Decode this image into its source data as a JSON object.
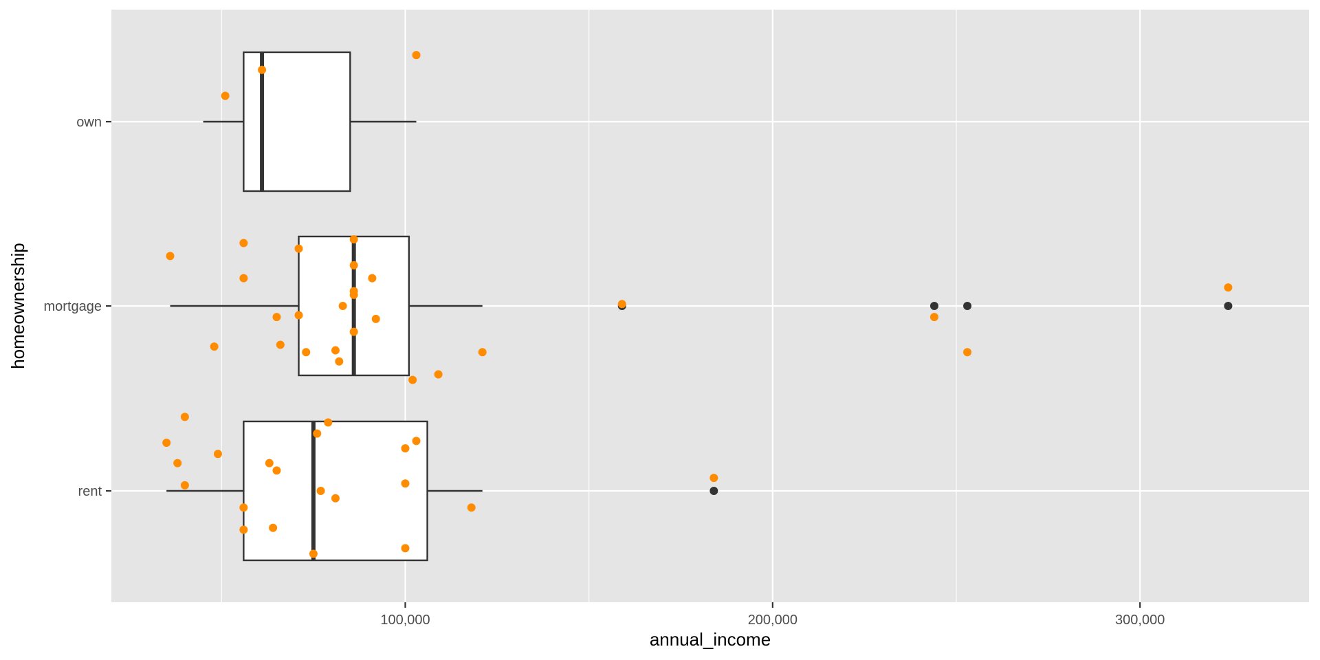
{
  "chart_data": {
    "type": "boxplot",
    "orientation": "horizontal",
    "xlabel": "annual_income",
    "ylabel": "homeownership",
    "xlim": [
      20000,
      346000
    ],
    "x_ticks": [
      100000,
      200000,
      300000
    ],
    "x_tick_labels": [
      "100,000",
      "200,000",
      "300,000"
    ],
    "grid": true,
    "colors": {
      "panel_background": "#e5e5e5",
      "grid": "#ffffff",
      "box_fill": "#ffffff",
      "box_line": "#333333",
      "outlier": "#333333",
      "jitter_point": "#ff8c00"
    },
    "categories": [
      "own",
      "mortgage",
      "rent"
    ],
    "boxes": [
      {
        "category": "own",
        "whisker_low": 45000,
        "q1": 56000,
        "median": 61000,
        "q3": 85000,
        "whisker_high": 103000,
        "outliers": []
      },
      {
        "category": "mortgage",
        "whisker_low": 36000,
        "q1": 71000,
        "median": 86000,
        "q3": 101000,
        "whisker_high": 121000,
        "outliers": [
          159000,
          244000,
          253000,
          324000
        ]
      },
      {
        "category": "rent",
        "whisker_low": 35000,
        "q1": 56000,
        "median": 75000,
        "q3": 106000,
        "whisker_high": 121000,
        "outliers": [
          184000
        ]
      }
    ],
    "jitter_points": [
      {
        "category": "own",
        "x": 103000,
        "offset": 0.36
      },
      {
        "category": "own",
        "x": 61000,
        "offset": 0.28
      },
      {
        "category": "own",
        "x": 51000,
        "offset": 0.14
      },
      {
        "category": "mortgage",
        "x": 36000,
        "offset": 0.27
      },
      {
        "category": "mortgage",
        "x": 56000,
        "offset": 0.34
      },
      {
        "category": "mortgage",
        "x": 71000,
        "offset": 0.31
      },
      {
        "category": "mortgage",
        "x": 86000,
        "offset": 0.36
      },
      {
        "category": "mortgage",
        "x": 56000,
        "offset": 0.15
      },
      {
        "category": "mortgage",
        "x": 86000,
        "offset": 0.22
      },
      {
        "category": "mortgage",
        "x": 91000,
        "offset": 0.15
      },
      {
        "category": "mortgage",
        "x": 86000,
        "offset": 0.08
      },
      {
        "category": "mortgage",
        "x": 86000,
        "offset": 0.06
      },
      {
        "category": "mortgage",
        "x": 83000,
        "offset": 0.0
      },
      {
        "category": "mortgage",
        "x": 65000,
        "offset": -0.06
      },
      {
        "category": "mortgage",
        "x": 71000,
        "offset": -0.05
      },
      {
        "category": "mortgage",
        "x": 92000,
        "offset": -0.07
      },
      {
        "category": "mortgage",
        "x": 86000,
        "offset": -0.14
      },
      {
        "category": "mortgage",
        "x": 48000,
        "offset": -0.22
      },
      {
        "category": "mortgage",
        "x": 66000,
        "offset": -0.21
      },
      {
        "category": "mortgage",
        "x": 73000,
        "offset": -0.25
      },
      {
        "category": "mortgage",
        "x": 81000,
        "offset": -0.24
      },
      {
        "category": "mortgage",
        "x": 82000,
        "offset": -0.3
      },
      {
        "category": "mortgage",
        "x": 121000,
        "offset": -0.25
      },
      {
        "category": "mortgage",
        "x": 109000,
        "offset": -0.37
      },
      {
        "category": "mortgage",
        "x": 102000,
        "offset": -0.4
      },
      {
        "category": "mortgage",
        "x": 159000,
        "offset": 0.01
      },
      {
        "category": "mortgage",
        "x": 244000,
        "offset": -0.06
      },
      {
        "category": "mortgage",
        "x": 253000,
        "offset": -0.25
      },
      {
        "category": "mortgage",
        "x": 324000,
        "offset": 0.1
      },
      {
        "category": "rent",
        "x": 40000,
        "offset": 0.4
      },
      {
        "category": "rent",
        "x": 35000,
        "offset": 0.26
      },
      {
        "category": "rent",
        "x": 38000,
        "offset": 0.15
      },
      {
        "category": "rent",
        "x": 49000,
        "offset": 0.2
      },
      {
        "category": "rent",
        "x": 40000,
        "offset": 0.03
      },
      {
        "category": "rent",
        "x": 79000,
        "offset": 0.37
      },
      {
        "category": "rent",
        "x": 76000,
        "offset": 0.31
      },
      {
        "category": "rent",
        "x": 63000,
        "offset": 0.15
      },
      {
        "category": "rent",
        "x": 65000,
        "offset": 0.11
      },
      {
        "category": "rent",
        "x": 103000,
        "offset": 0.27
      },
      {
        "category": "rent",
        "x": 100000,
        "offset": 0.23
      },
      {
        "category": "rent",
        "x": 100000,
        "offset": 0.04
      },
      {
        "category": "rent",
        "x": 77000,
        "offset": 0.0
      },
      {
        "category": "rent",
        "x": 81000,
        "offset": -0.04
      },
      {
        "category": "rent",
        "x": 56000,
        "offset": -0.09
      },
      {
        "category": "rent",
        "x": 118000,
        "offset": -0.09
      },
      {
        "category": "rent",
        "x": 64000,
        "offset": -0.2
      },
      {
        "category": "rent",
        "x": 56000,
        "offset": -0.21
      },
      {
        "category": "rent",
        "x": 100000,
        "offset": -0.31
      },
      {
        "category": "rent",
        "x": 75000,
        "offset": -0.34
      },
      {
        "category": "rent",
        "x": 184000,
        "offset": 0.07
      }
    ]
  }
}
